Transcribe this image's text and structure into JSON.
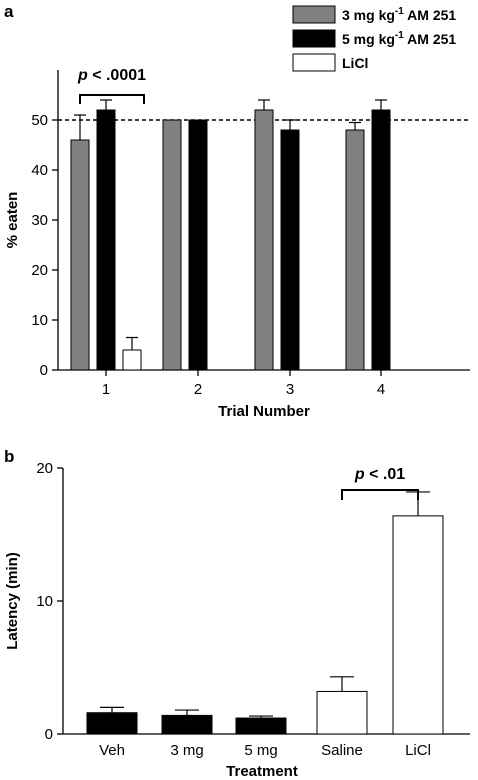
{
  "chart_data": [
    {
      "panel": "a",
      "type": "bar",
      "categories": [
        "1",
        "2",
        "3",
        "4"
      ],
      "xlabel": "Trial Number",
      "ylabel": "% eaten",
      "ylim": [
        0,
        60
      ],
      "yticks": [
        0,
        10,
        20,
        30,
        40,
        50
      ],
      "reference_line": 50,
      "legend": {
        "placement": "top-right"
      },
      "series": [
        {
          "name": "3 mg kg-1 AM 251",
          "label_main": "3 mg kg",
          "label_sup": "-1",
          "label_tail": " AM 251",
          "color": "#808080",
          "values": [
            46,
            50,
            52,
            48
          ],
          "errors": [
            5,
            0,
            2,
            1.5
          ]
        },
        {
          "name": "5 mg kg-1 AM 251",
          "label_main": "5 mg kg",
          "label_sup": "-1",
          "label_tail": " AM 251",
          "color": "#000000",
          "values": [
            52,
            50,
            48,
            52
          ],
          "errors": [
            2,
            0,
            2,
            2
          ]
        },
        {
          "name": "LiCl",
          "label_main": "LiCl",
          "label_sup": "",
          "label_tail": "",
          "color": "#ffffff",
          "values": [
            4,
            null,
            null,
            null
          ],
          "errors": [
            2.5,
            null,
            null,
            null
          ]
        }
      ],
      "annotation": {
        "text": "p < .0001",
        "prefix": "p",
        "rest": " < .0001"
      }
    },
    {
      "panel": "b",
      "type": "bar",
      "categories": [
        "Veh",
        "3 mg",
        "5 mg",
        "Saline",
        "LiCl"
      ],
      "xlabel": "Treatment",
      "ylabel": "Latency (min)",
      "ylim": [
        0,
        20
      ],
      "yticks": [
        0,
        10,
        20
      ],
      "values": [
        1.6,
        1.4,
        1.2,
        3.2,
        16.4
      ],
      "errors": [
        0.4,
        0.4,
        0.15,
        1.1,
        1.8
      ],
      "colors": [
        "#000000",
        "#000000",
        "#000000",
        "#ffffff",
        "#ffffff"
      ],
      "annotation": {
        "text": "p < .01",
        "prefix": "p",
        "rest": " < .01"
      }
    }
  ]
}
